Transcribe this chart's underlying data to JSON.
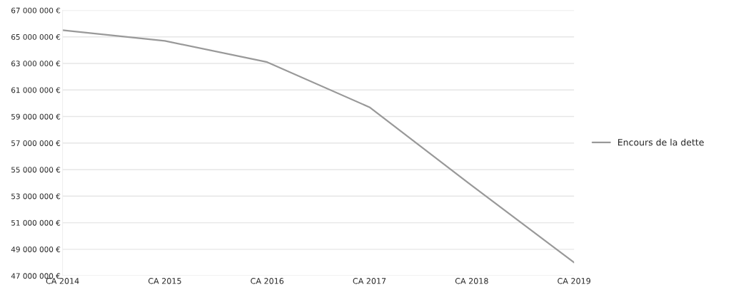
{
  "chart_data": {
    "type": "line",
    "categories": [
      "CA 2014",
      "CA 2015",
      "CA 2016",
      "CA 2017",
      "CA 2018",
      "CA 2019"
    ],
    "series": [
      {
        "name": "Encours de la dette",
        "color": "#999999",
        "values": [
          65500000,
          64700000,
          63100000,
          59700000,
          53800000,
          48000000
        ]
      }
    ],
    "ylim": [
      47000000,
      67000000
    ],
    "yticks": [
      {
        "value": 47000000,
        "label": "47 000 000 €"
      },
      {
        "value": 49000000,
        "label": "49 000 000 €"
      },
      {
        "value": 51000000,
        "label": "51 000 000 €"
      },
      {
        "value": 53000000,
        "label": "53 000 000 €"
      },
      {
        "value": 55000000,
        "label": "55 000 000 €"
      },
      {
        "value": 57000000,
        "label": "57 000 000 €"
      },
      {
        "value": 59000000,
        "label": "59 000 000 €"
      },
      {
        "value": 61000000,
        "label": "61 000 000 €"
      },
      {
        "value": 63000000,
        "label": "63 000 000 €"
      },
      {
        "value": 65000000,
        "label": "65 000 000 €"
      },
      {
        "value": 67000000,
        "label": "67 000 000 €"
      }
    ],
    "grid": "y",
    "legend": "right",
    "marker": "none",
    "line_style": "solid"
  }
}
